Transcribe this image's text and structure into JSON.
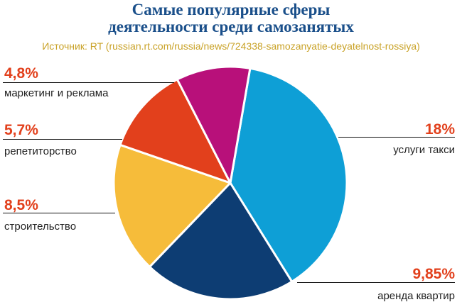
{
  "header": {
    "title_line1": "Самые популярные сферы",
    "title_line2": "деятельности среди самозанятых",
    "source": "Источник: RT (russian.rt.com/russia/news/724338-samozanyatie-deyatelnost-rossiya)"
  },
  "chart_data": {
    "type": "pie",
    "title": "Самые популярные сферы деятельности среди самозанятых",
    "slices": [
      {
        "label": "услуги такси",
        "value": 18,
        "value_label": "18%",
        "color": "#0e9fd6"
      },
      {
        "label": "аренда квартир",
        "value": 9.85,
        "value_label": "9,85%",
        "color": "#0d3d73"
      },
      {
        "label": "строительство",
        "value": 8.5,
        "value_label": "8,5%",
        "color": "#f6bc3a"
      },
      {
        "label": "репетиторство",
        "value": 5.7,
        "value_label": "5,7%",
        "color": "#e2401c"
      },
      {
        "label": "маркетинг и реклама",
        "value": 4.8,
        "value_label": "4,8%",
        "color": "#b8107a"
      }
    ],
    "legend": "callouts"
  }
}
